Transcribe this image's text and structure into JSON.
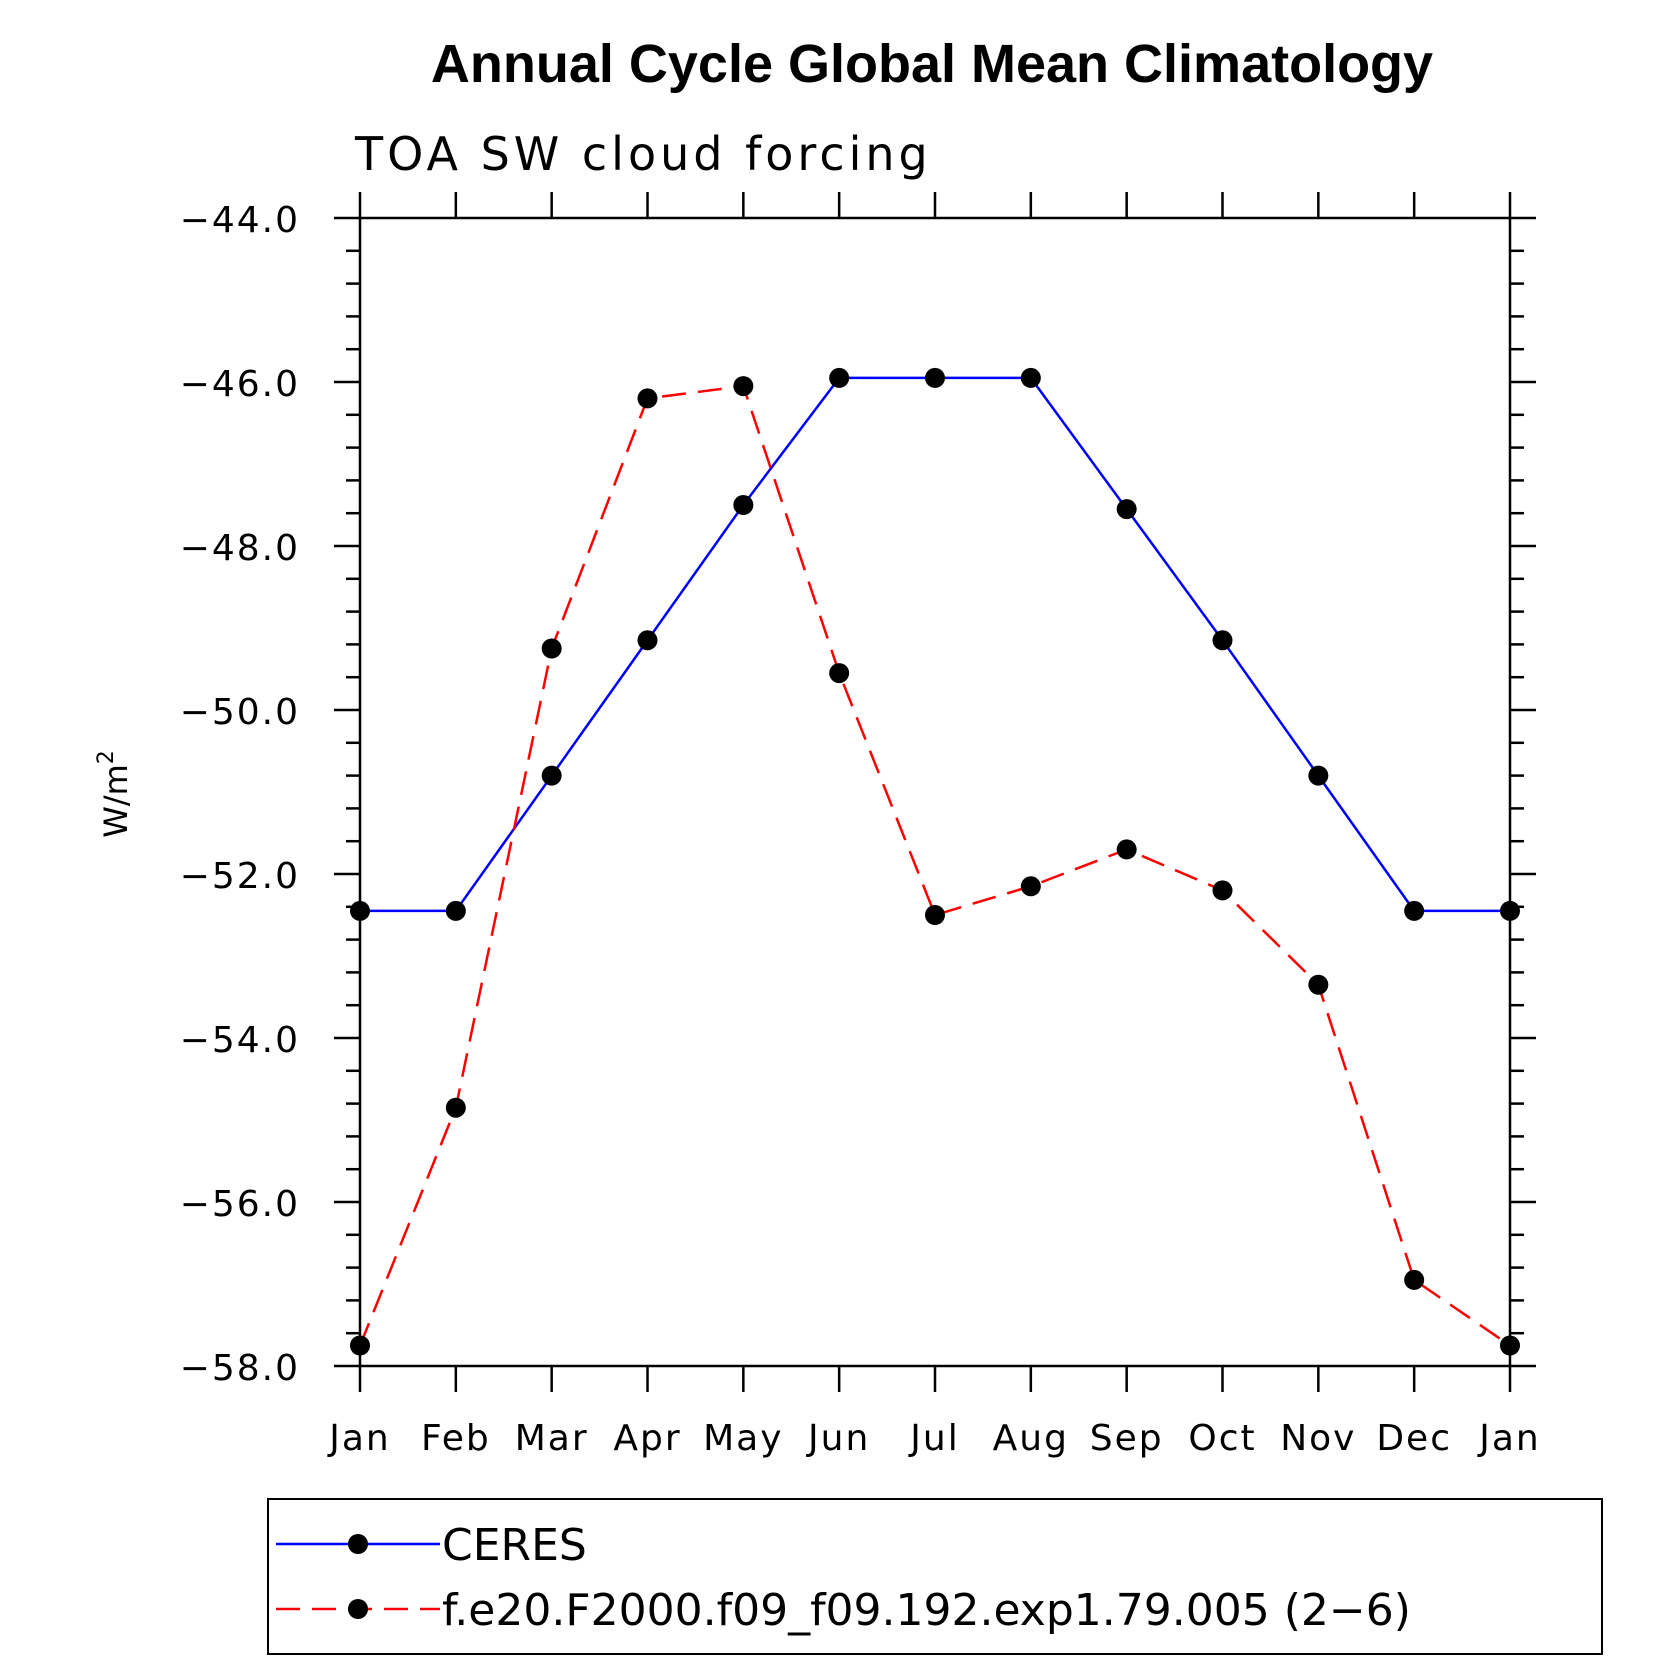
{
  "chart_data": {
    "type": "line",
    "title": "Annual Cycle Global Mean Climatology",
    "subtitle": "TOA SW cloud forcing",
    "ylabel": "W/m",
    "ylabel_sup": "2",
    "xlabel": "",
    "categories": [
      "Jan",
      "Feb",
      "Mar",
      "Apr",
      "May",
      "Jun",
      "Jul",
      "Aug",
      "Sep",
      "Oct",
      "Nov",
      "Dec",
      "Jan"
    ],
    "ylim": [
      -58.0,
      -44.0
    ],
    "yticks": [
      -44.0,
      -46.0,
      -48.0,
      -50.0,
      -52.0,
      -54.0,
      -56.0,
      -58.0
    ],
    "ytick_labels": [
      "−44.0",
      "−46.0",
      "−48.0",
      "−50.0",
      "−52.0",
      "−54.0",
      "−56.0",
      "−58.0"
    ],
    "series": [
      {
        "name": "CERES",
        "color": "#0000ff",
        "dash": "solid",
        "marker": "filled-circle",
        "values": [
          -52.45,
          -52.45,
          -50.8,
          -49.15,
          -47.5,
          -45.95,
          -45.95,
          -45.95,
          -47.55,
          -49.15,
          -50.8,
          -52.45,
          -52.45
        ]
      },
      {
        "name": "f.e20.F2000.f09_f09.192.exp1.79.005 (2−6)",
        "color": "#ff0000",
        "dash": "dashed",
        "marker": "filled-circle",
        "values": [
          -57.75,
          -54.85,
          -49.25,
          -46.2,
          -46.05,
          -49.55,
          -52.5,
          -52.15,
          -51.7,
          -52.2,
          -53.35,
          -56.95,
          -57.75
        ]
      }
    ],
    "grid": false,
    "legend_position": "bottom"
  }
}
